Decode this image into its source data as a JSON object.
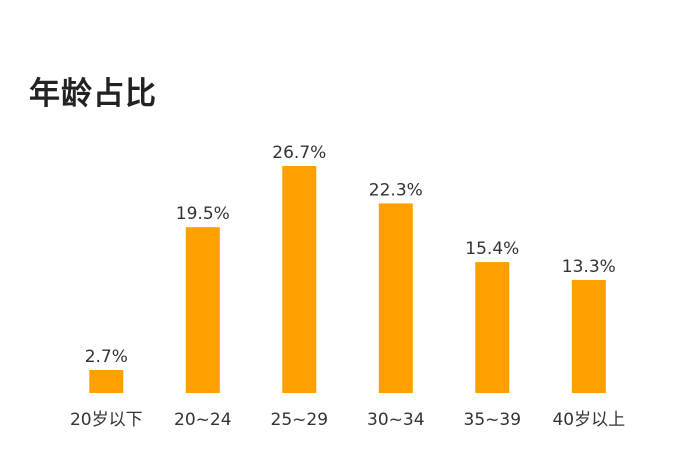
{
  "chart_data": {
    "type": "bar",
    "title": "年龄占比",
    "categories": [
      "20岁以下",
      "20~24",
      "25~29",
      "30~34",
      "35~39",
      "40岁以上"
    ],
    "values": [
      2.7,
      19.5,
      26.7,
      22.3,
      15.4,
      13.3
    ],
    "data_labels": [
      "2.7%",
      "19.5%",
      "26.7%",
      "22.3%",
      "15.4%",
      "13.3%"
    ],
    "ylim": [
      0,
      26.7
    ],
    "grid": false,
    "bar_color": "#FFA000"
  }
}
